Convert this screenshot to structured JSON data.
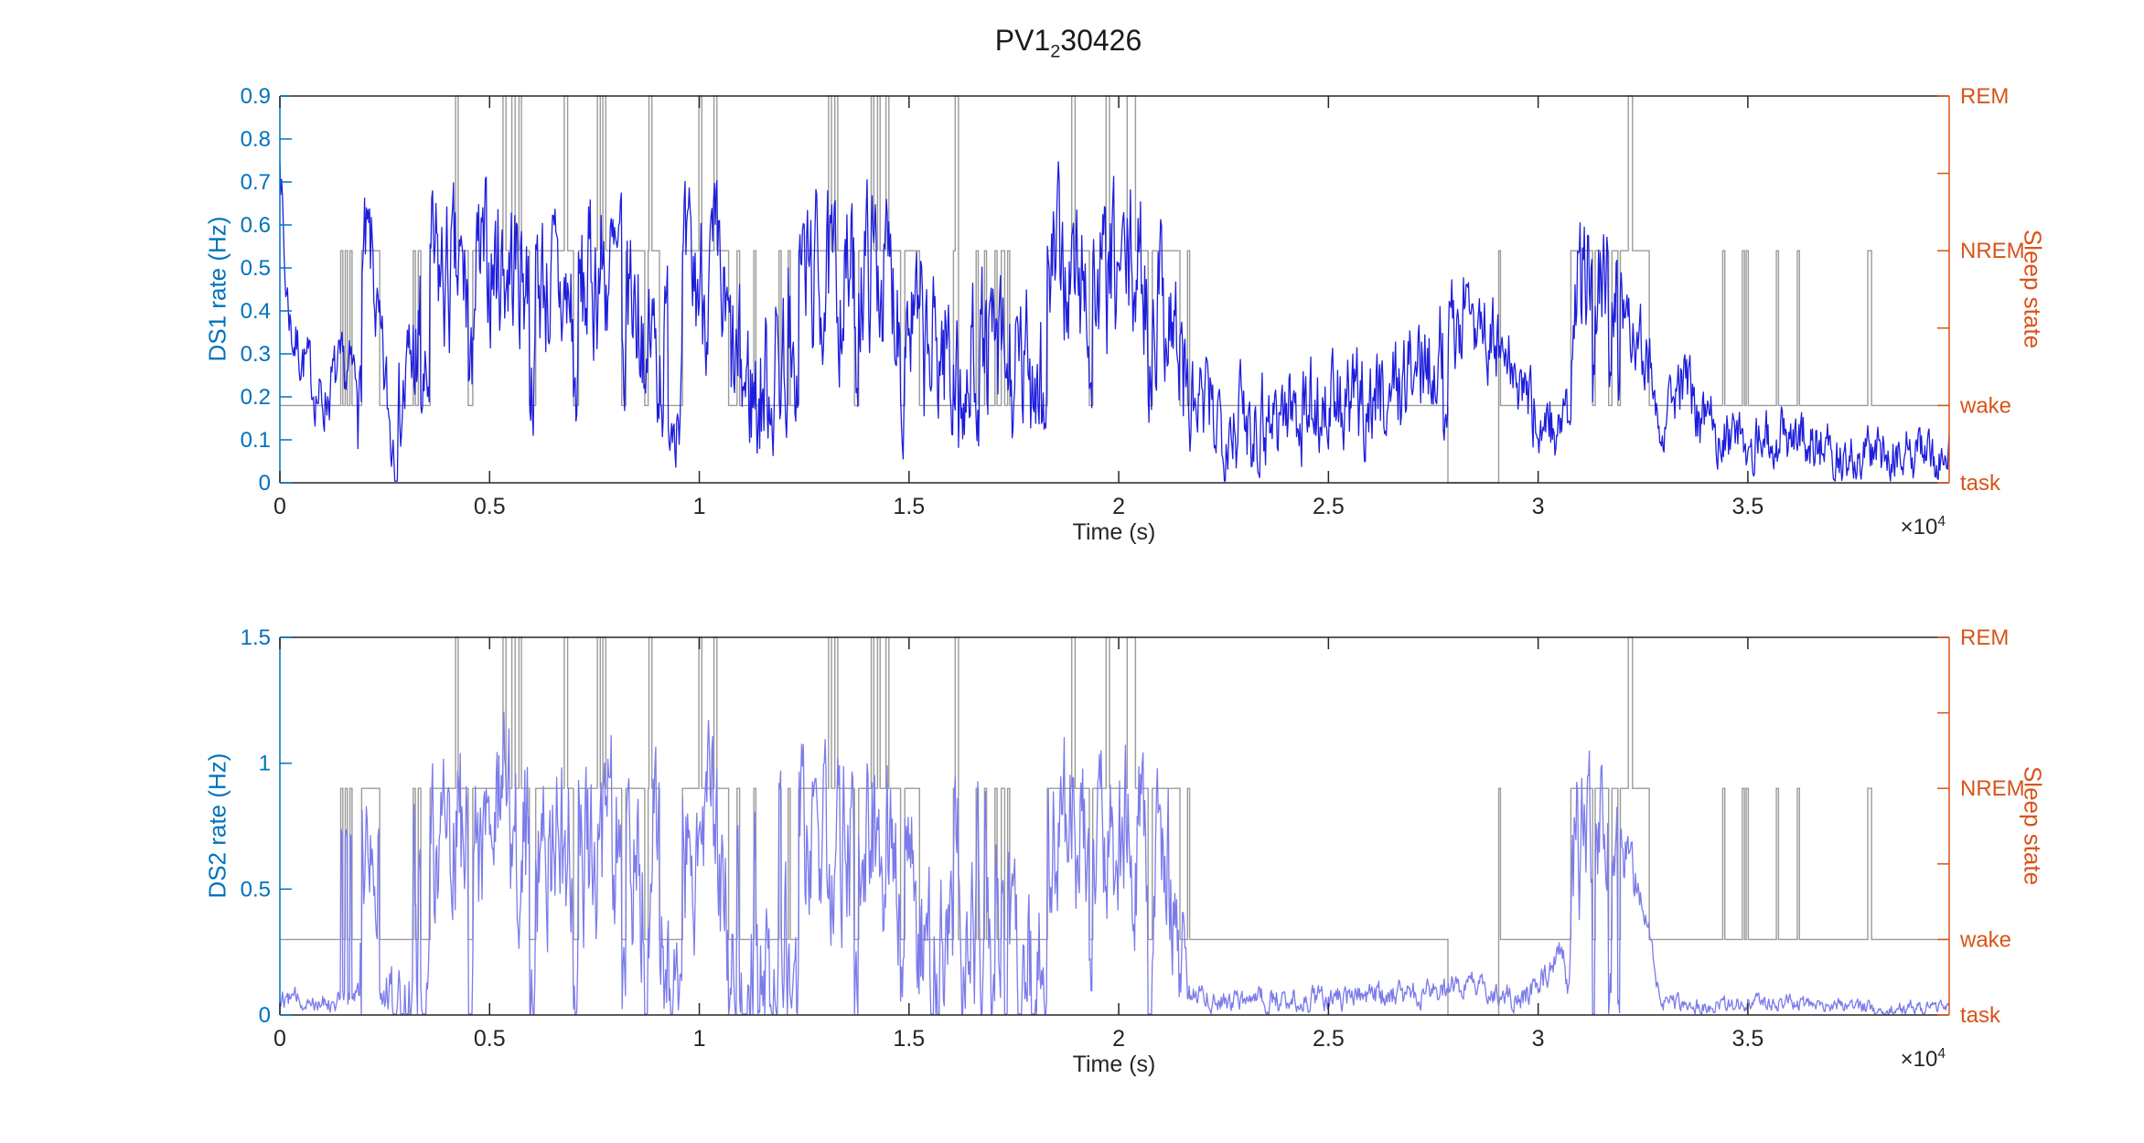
{
  "title": {
    "prefix": "PV1",
    "sub": "2",
    "suffix": "30426"
  },
  "colors": {
    "background": "#FFFFFF",
    "left_axis": "#0072BD",
    "right_axis": "#D95319",
    "dark_axis": "#262626",
    "hypnogram": "#9B9B9B",
    "title_text": "#1A1A1A"
  },
  "chart_data": {
    "type": "line",
    "title": "PV1_230426",
    "x_axis": {
      "label": "Time (s)",
      "range": [
        0,
        39800
      ],
      "exponent_prefix": "×10",
      "exponent": "4",
      "ticks": [
        {
          "value": 0,
          "label": "0"
        },
        {
          "value": 5000,
          "label": "0.5"
        },
        {
          "value": 10000,
          "label": "1"
        },
        {
          "value": 15000,
          "label": "1.5"
        },
        {
          "value": 20000,
          "label": "2"
        },
        {
          "value": 25000,
          "label": "2.5"
        },
        {
          "value": 30000,
          "label": "3"
        },
        {
          "value": 35000,
          "label": "3.5"
        }
      ]
    },
    "right_axis": {
      "label": "Sleep state",
      "max_level": 5,
      "ticks": [
        {
          "level": 0,
          "label": "task"
        },
        {
          "level": 1,
          "label": "wake"
        },
        {
          "level": 2,
          "label": ""
        },
        {
          "level": 3,
          "label": "NREM"
        },
        {
          "level": 4,
          "label": ""
        },
        {
          "level": 5,
          "label": "REM"
        }
      ]
    },
    "state_levels": {
      "T": 0,
      "W": 1,
      "N": 3,
      "R": 5
    },
    "hypnogram_segments": [
      [
        0,
        "W"
      ],
      [
        1450,
        "N"
      ],
      [
        1500,
        "W"
      ],
      [
        1560,
        "N"
      ],
      [
        1610,
        "W"
      ],
      [
        1670,
        "N"
      ],
      [
        1720,
        "W"
      ],
      [
        1950,
        "N"
      ],
      [
        2380,
        "W"
      ],
      [
        3180,
        "N"
      ],
      [
        3230,
        "W"
      ],
      [
        3300,
        "N"
      ],
      [
        3360,
        "W"
      ],
      [
        3580,
        "N"
      ],
      [
        4190,
        "R"
      ],
      [
        4250,
        "N"
      ],
      [
        4490,
        "W"
      ],
      [
        4600,
        "N"
      ],
      [
        5320,
        "R"
      ],
      [
        5390,
        "N"
      ],
      [
        5530,
        "R"
      ],
      [
        5610,
        "N"
      ],
      [
        5700,
        "R"
      ],
      [
        5760,
        "N"
      ],
      [
        5950,
        "W"
      ],
      [
        6100,
        "N"
      ],
      [
        6780,
        "R"
      ],
      [
        6860,
        "N"
      ],
      [
        7000,
        "W"
      ],
      [
        7120,
        "N"
      ],
      [
        7570,
        "R"
      ],
      [
        7640,
        "N"
      ],
      [
        7700,
        "R"
      ],
      [
        7770,
        "N"
      ],
      [
        8150,
        "W"
      ],
      [
        8250,
        "N"
      ],
      [
        8700,
        "W"
      ],
      [
        8780,
        "N"
      ],
      [
        8800,
        "R"
      ],
      [
        8870,
        "N"
      ],
      [
        9050,
        "W"
      ],
      [
        9600,
        "N"
      ],
      [
        9990,
        "R"
      ],
      [
        10060,
        "N"
      ],
      [
        10350,
        "R"
      ],
      [
        10420,
        "N"
      ],
      [
        10700,
        "W"
      ],
      [
        10900,
        "N"
      ],
      [
        10960,
        "W"
      ],
      [
        11300,
        "N"
      ],
      [
        11350,
        "W"
      ],
      [
        11900,
        "N"
      ],
      [
        11950,
        "W"
      ],
      [
        12120,
        "N"
      ],
      [
        12170,
        "W"
      ],
      [
        12370,
        "N"
      ],
      [
        13080,
        "R"
      ],
      [
        13150,
        "N"
      ],
      [
        13230,
        "R"
      ],
      [
        13300,
        "N"
      ],
      [
        13700,
        "W"
      ],
      [
        13800,
        "N"
      ],
      [
        14100,
        "R"
      ],
      [
        14160,
        "N"
      ],
      [
        14250,
        "R"
      ],
      [
        14310,
        "N"
      ],
      [
        14450,
        "R"
      ],
      [
        14520,
        "N"
      ],
      [
        14800,
        "W"
      ],
      [
        14900,
        "N"
      ],
      [
        15250,
        "W"
      ],
      [
        16060,
        "N"
      ],
      [
        16100,
        "R"
      ],
      [
        16180,
        "W"
      ],
      [
        16600,
        "N"
      ],
      [
        16650,
        "W"
      ],
      [
        16800,
        "N"
      ],
      [
        16850,
        "W"
      ],
      [
        17050,
        "N"
      ],
      [
        17100,
        "W"
      ],
      [
        17200,
        "N"
      ],
      [
        17280,
        "W"
      ],
      [
        17350,
        "N"
      ],
      [
        17400,
        "W"
      ],
      [
        18300,
        "N"
      ],
      [
        18880,
        "R"
      ],
      [
        18960,
        "N"
      ],
      [
        19300,
        "W"
      ],
      [
        19380,
        "N"
      ],
      [
        19700,
        "R"
      ],
      [
        19780,
        "N"
      ],
      [
        20200,
        "R"
      ],
      [
        20400,
        "N"
      ],
      [
        20700,
        "W"
      ],
      [
        20800,
        "N"
      ],
      [
        21460,
        "W"
      ],
      [
        21640,
        "N"
      ],
      [
        21690,
        "W"
      ],
      [
        27850,
        "T"
      ],
      [
        29060,
        "N"
      ],
      [
        29100,
        "W"
      ],
      [
        30780,
        "N"
      ],
      [
        31300,
        "W"
      ],
      [
        31360,
        "N"
      ],
      [
        31680,
        "W"
      ],
      [
        31760,
        "N"
      ],
      [
        31900,
        "W"
      ],
      [
        31960,
        "N"
      ],
      [
        32150,
        "R"
      ],
      [
        32250,
        "N"
      ],
      [
        32650,
        "W"
      ],
      [
        34400,
        "N"
      ],
      [
        34450,
        "W"
      ],
      [
        34870,
        "N"
      ],
      [
        34920,
        "W"
      ],
      [
        34960,
        "N"
      ],
      [
        35010,
        "W"
      ],
      [
        35680,
        "N"
      ],
      [
        35730,
        "W"
      ],
      [
        36180,
        "N"
      ],
      [
        36230,
        "W"
      ],
      [
        37860,
        "N"
      ],
      [
        37950,
        "W"
      ]
    ],
    "sample_step_s": 20,
    "plots": [
      {
        "name": "DS1",
        "ylabel": "DS1 rate (Hz)",
        "ylim": [
          0,
          0.9
        ],
        "yticks": [
          {
            "value": 0,
            "label": "0"
          },
          {
            "value": 0.1,
            "label": "0.1"
          },
          {
            "value": 0.2,
            "label": "0.2"
          },
          {
            "value": 0.3,
            "label": "0.3"
          },
          {
            "value": 0.4,
            "label": "0.4"
          },
          {
            "value": 0.5,
            "label": "0.5"
          },
          {
            "value": 0.6,
            "label": "0.6"
          },
          {
            "value": 0.7,
            "label": "0.7"
          },
          {
            "value": 0.8,
            "label": "0.8"
          },
          {
            "value": 0.9,
            "label": "0.9"
          }
        ],
        "line_color": "#1E1EDC",
        "seed": 7,
        "noise": {
          "ar": 0.52,
          "innov": 1.0,
          "scale": 2.2,
          "dip_scale": 1.4,
          "burst_scale": 1.8
        },
        "dip_factor": 0.5,
        "dip_after": 1500,
        "burst_level": null,
        "burst_before": 0,
        "mean_profile": [
          [
            0,
            0.8
          ],
          [
            120,
            0.48
          ],
          [
            300,
            0.34
          ],
          [
            600,
            0.28
          ],
          [
            1000,
            0.18
          ],
          [
            1300,
            0.24
          ],
          [
            1800,
            0.25
          ],
          [
            1950,
            0.5
          ],
          [
            2200,
            0.52
          ],
          [
            2380,
            0.3
          ],
          [
            2650,
            0.12
          ],
          [
            3000,
            0.22
          ],
          [
            3600,
            0.48
          ],
          [
            4500,
            0.45
          ],
          [
            5200,
            0.52
          ],
          [
            6200,
            0.48
          ],
          [
            7000,
            0.4
          ],
          [
            7600,
            0.5
          ],
          [
            8400,
            0.45
          ],
          [
            9100,
            0.28
          ],
          [
            9600,
            0.45
          ],
          [
            10400,
            0.48
          ],
          [
            10800,
            0.25
          ],
          [
            11400,
            0.2
          ],
          [
            12000,
            0.3
          ],
          [
            12400,
            0.5
          ],
          [
            13200,
            0.45
          ],
          [
            14200,
            0.52
          ],
          [
            15000,
            0.4
          ],
          [
            15400,
            0.28
          ],
          [
            16200,
            0.35
          ],
          [
            16900,
            0.3
          ],
          [
            17600,
            0.22
          ],
          [
            18100,
            0.3
          ],
          [
            18400,
            0.5
          ],
          [
            19500,
            0.45
          ],
          [
            20300,
            0.5
          ],
          [
            21200,
            0.42
          ],
          [
            21700,
            0.17
          ],
          [
            23000,
            0.15
          ],
          [
            24500,
            0.18
          ],
          [
            25500,
            0.17
          ],
          [
            26500,
            0.22
          ],
          [
            27500,
            0.3
          ],
          [
            28400,
            0.42
          ],
          [
            29200,
            0.28
          ],
          [
            30000,
            0.15
          ],
          [
            30700,
            0.12
          ],
          [
            30900,
            0.42
          ],
          [
            31300,
            0.52
          ],
          [
            32000,
            0.45
          ],
          [
            32600,
            0.3
          ],
          [
            32900,
            0.16
          ],
          [
            33400,
            0.24
          ],
          [
            33900,
            0.14
          ],
          [
            34800,
            0.1
          ],
          [
            36300,
            0.11
          ],
          [
            37200,
            0.07
          ],
          [
            39800,
            0.06
          ]
        ],
        "amp_profile": [
          [
            0,
            0.05
          ],
          [
            1800,
            0.06
          ],
          [
            1950,
            0.12
          ],
          [
            2400,
            0.08
          ],
          [
            3500,
            0.14
          ],
          [
            21400,
            0.14
          ],
          [
            21800,
            0.09
          ],
          [
            27000,
            0.09
          ],
          [
            28500,
            0.08
          ],
          [
            30700,
            0.06
          ],
          [
            30800,
            0.13
          ],
          [
            32650,
            0.06
          ],
          [
            35000,
            0.05
          ],
          [
            39800,
            0.045
          ]
        ]
      },
      {
        "name": "DS2",
        "ylabel": "DS2 rate (Hz)",
        "ylim": [
          0,
          1.5
        ],
        "yticks": [
          {
            "value": 0,
            "label": "0"
          },
          {
            "value": 0.5,
            "label": "0.5"
          },
          {
            "value": 1,
            "label": "1"
          },
          {
            "value": 1.5,
            "label": "1.5"
          }
        ],
        "line_color": "#7B7BEB",
        "seed": 12,
        "noise": {
          "ar": 0.52,
          "innov": 1.0,
          "scale": 2.2,
          "dip_scale": 1.4,
          "burst_scale": 1.8
        },
        "dip_factor": 0.12,
        "dip_after": 1500,
        "burst_level": 0.72,
        "burst_before": 21000,
        "mean_profile": [
          [
            0,
            0.07
          ],
          [
            600,
            0.06
          ],
          [
            1400,
            0.06
          ],
          [
            1900,
            0.08
          ],
          [
            1960,
            0.7
          ],
          [
            2200,
            0.72
          ],
          [
            2380,
            0.1
          ],
          [
            3000,
            0.07
          ],
          [
            3600,
            0.72
          ],
          [
            4500,
            0.68
          ],
          [
            5200,
            0.75
          ],
          [
            6200,
            0.7
          ],
          [
            7000,
            0.6
          ],
          [
            7600,
            0.72
          ],
          [
            8400,
            0.66
          ],
          [
            9100,
            0.15
          ],
          [
            9600,
            0.68
          ],
          [
            10400,
            0.7
          ],
          [
            10800,
            0.22
          ],
          [
            11400,
            0.15
          ],
          [
            12000,
            0.25
          ],
          [
            12400,
            0.72
          ],
          [
            13200,
            0.68
          ],
          [
            14200,
            0.74
          ],
          [
            15000,
            0.5
          ],
          [
            15400,
            0.2
          ],
          [
            16200,
            0.3
          ],
          [
            16900,
            0.22
          ],
          [
            17600,
            0.15
          ],
          [
            18100,
            0.22
          ],
          [
            18400,
            0.74
          ],
          [
            19500,
            0.68
          ],
          [
            20300,
            0.72
          ],
          [
            21200,
            0.55
          ],
          [
            21450,
            0.3
          ],
          [
            21700,
            0.07
          ],
          [
            23500,
            0.06
          ],
          [
            25500,
            0.07
          ],
          [
            27000,
            0.08
          ],
          [
            28600,
            0.13
          ],
          [
            29600,
            0.07
          ],
          [
            30300,
            0.18
          ],
          [
            30550,
            0.28
          ],
          [
            30700,
            0.12
          ],
          [
            30900,
            0.65
          ],
          [
            31300,
            0.75
          ],
          [
            32000,
            0.68
          ],
          [
            32600,
            0.4
          ],
          [
            32900,
            0.05
          ],
          [
            34000,
            0.04
          ],
          [
            36000,
            0.05
          ],
          [
            38000,
            0.03
          ],
          [
            39800,
            0.03
          ]
        ],
        "amp_profile": [
          [
            0,
            0.03
          ],
          [
            1900,
            0.03
          ],
          [
            1960,
            0.25
          ],
          [
            2380,
            0.04
          ],
          [
            3500,
            0.28
          ],
          [
            21400,
            0.25
          ],
          [
            21700,
            0.035
          ],
          [
            30700,
            0.04
          ],
          [
            30800,
            0.26
          ],
          [
            32650,
            0.025
          ],
          [
            39800,
            0.02
          ]
        ]
      }
    ]
  }
}
